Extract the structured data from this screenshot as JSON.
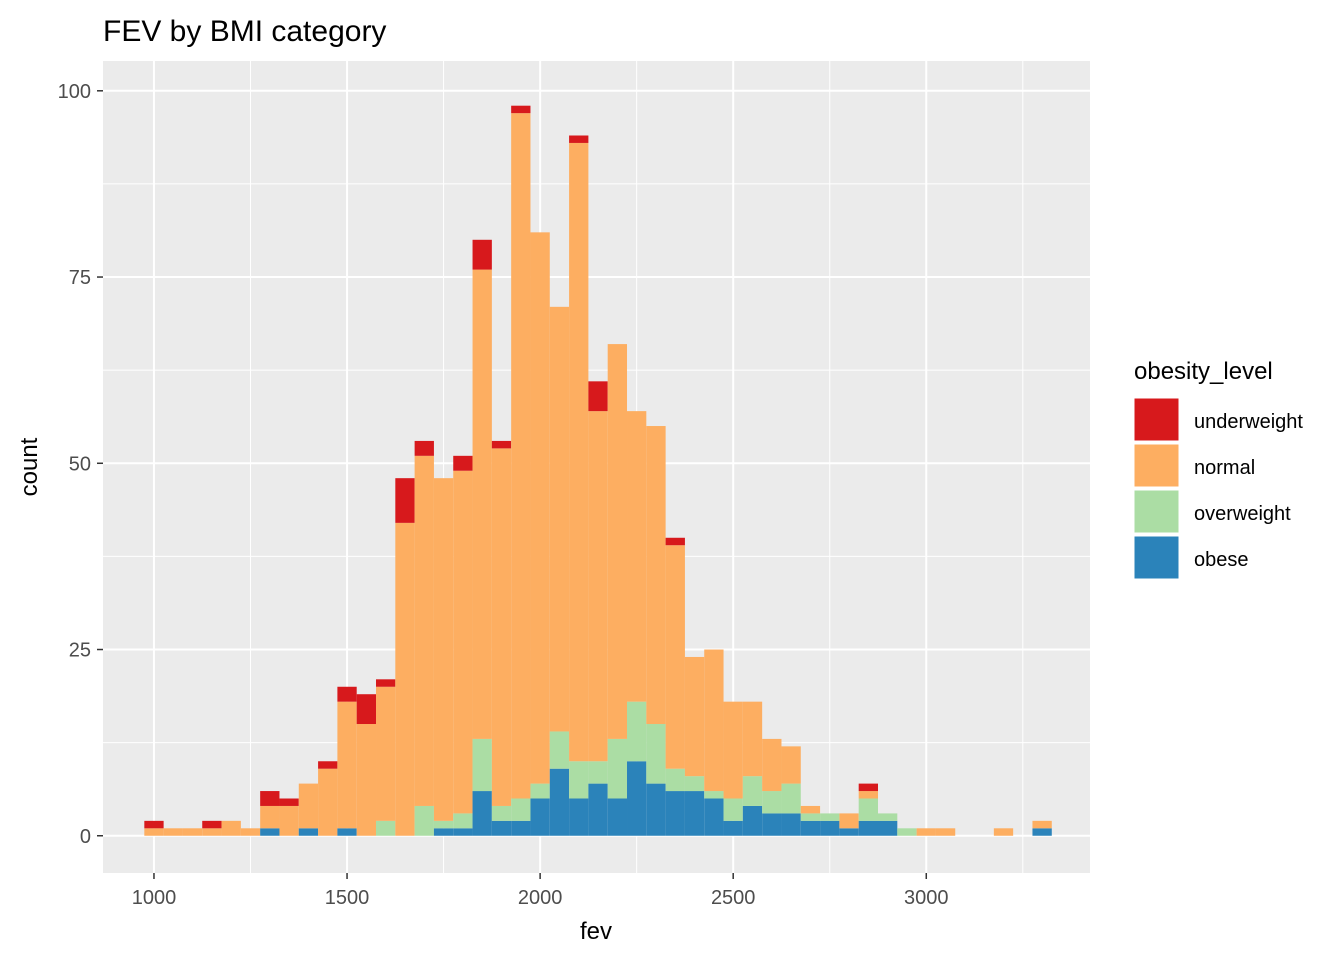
{
  "chart_data": {
    "type": "bar",
    "stacked": true,
    "title": "FEV by BMI category",
    "xlabel": "fev",
    "ylabel": "count",
    "xlim": [
      868,
      3424
    ],
    "ylim": [
      -5,
      104
    ],
    "x_ticks": [
      1000,
      1500,
      2000,
      2500,
      3000
    ],
    "y_ticks": [
      0,
      25,
      50,
      75,
      100
    ],
    "grid": true,
    "bin_width": 50,
    "legend": {
      "title": "obesity_level",
      "position": "right"
    },
    "colors": {
      "underweight": "#d7191c",
      "normal": "#fdae61",
      "overweight": "#abdda4",
      "obese": "#2b83ba",
      "panel": "#ebebeb",
      "grid": "#ffffff"
    },
    "bins": [
      1000,
      1050,
      1100,
      1150,
      1200,
      1250,
      1300,
      1350,
      1400,
      1450,
      1500,
      1550,
      1600,
      1650,
      1700,
      1750,
      1800,
      1850,
      1900,
      1950,
      2000,
      2050,
      2100,
      2150,
      2200,
      2250,
      2300,
      2350,
      2400,
      2450,
      2500,
      2550,
      2600,
      2650,
      2700,
      2750,
      2800,
      2850,
      2900,
      2950,
      3000,
      3050,
      3100,
      3150,
      3200,
      3250,
      3300
    ],
    "series": [
      {
        "name": "obese",
        "values": [
          0,
          0,
          0,
          0,
          0,
          0,
          1,
          0,
          1,
          0,
          1,
          0,
          0,
          0,
          0,
          1,
          1,
          6,
          2,
          2,
          5,
          9,
          5,
          7,
          5,
          10,
          7,
          6,
          6,
          5,
          2,
          4,
          3,
          3,
          2,
          2,
          1,
          2,
          2,
          0,
          0,
          0,
          0,
          0,
          0,
          0,
          1
        ]
      },
      {
        "name": "overweight",
        "values": [
          0,
          0,
          0,
          0,
          0,
          0,
          0,
          0,
          0,
          0,
          0,
          0,
          2,
          0,
          4,
          1,
          2,
          7,
          2,
          3,
          2,
          5,
          5,
          3,
          8,
          8,
          8,
          3,
          2,
          1,
          3,
          4,
          3,
          4,
          1,
          1,
          0,
          3,
          1,
          1,
          0,
          0,
          0,
          0,
          0,
          0,
          0
        ]
      },
      {
        "name": "normal",
        "values": [
          1,
          1,
          1,
          1,
          2,
          1,
          3,
          4,
          6,
          9,
          17,
          15,
          18,
          42,
          47,
          46,
          46,
          63,
          48,
          92,
          74,
          57,
          83,
          47,
          53,
          39,
          40,
          30,
          16,
          19,
          13,
          10,
          7,
          5,
          1,
          0,
          2,
          1,
          0,
          0,
          1,
          1,
          0,
          0,
          1,
          0,
          1
        ]
      },
      {
        "name": "underweight",
        "values": [
          1,
          0,
          0,
          1,
          0,
          0,
          2,
          1,
          0,
          1,
          2,
          4,
          1,
          6,
          2,
          0,
          2,
          4,
          1,
          1,
          0,
          0,
          1,
          4,
          0,
          0,
          0,
          1,
          0,
          0,
          0,
          0,
          0,
          0,
          0,
          0,
          0,
          1,
          0,
          0,
          0,
          0,
          0,
          0,
          0,
          0,
          0
        ]
      }
    ]
  }
}
